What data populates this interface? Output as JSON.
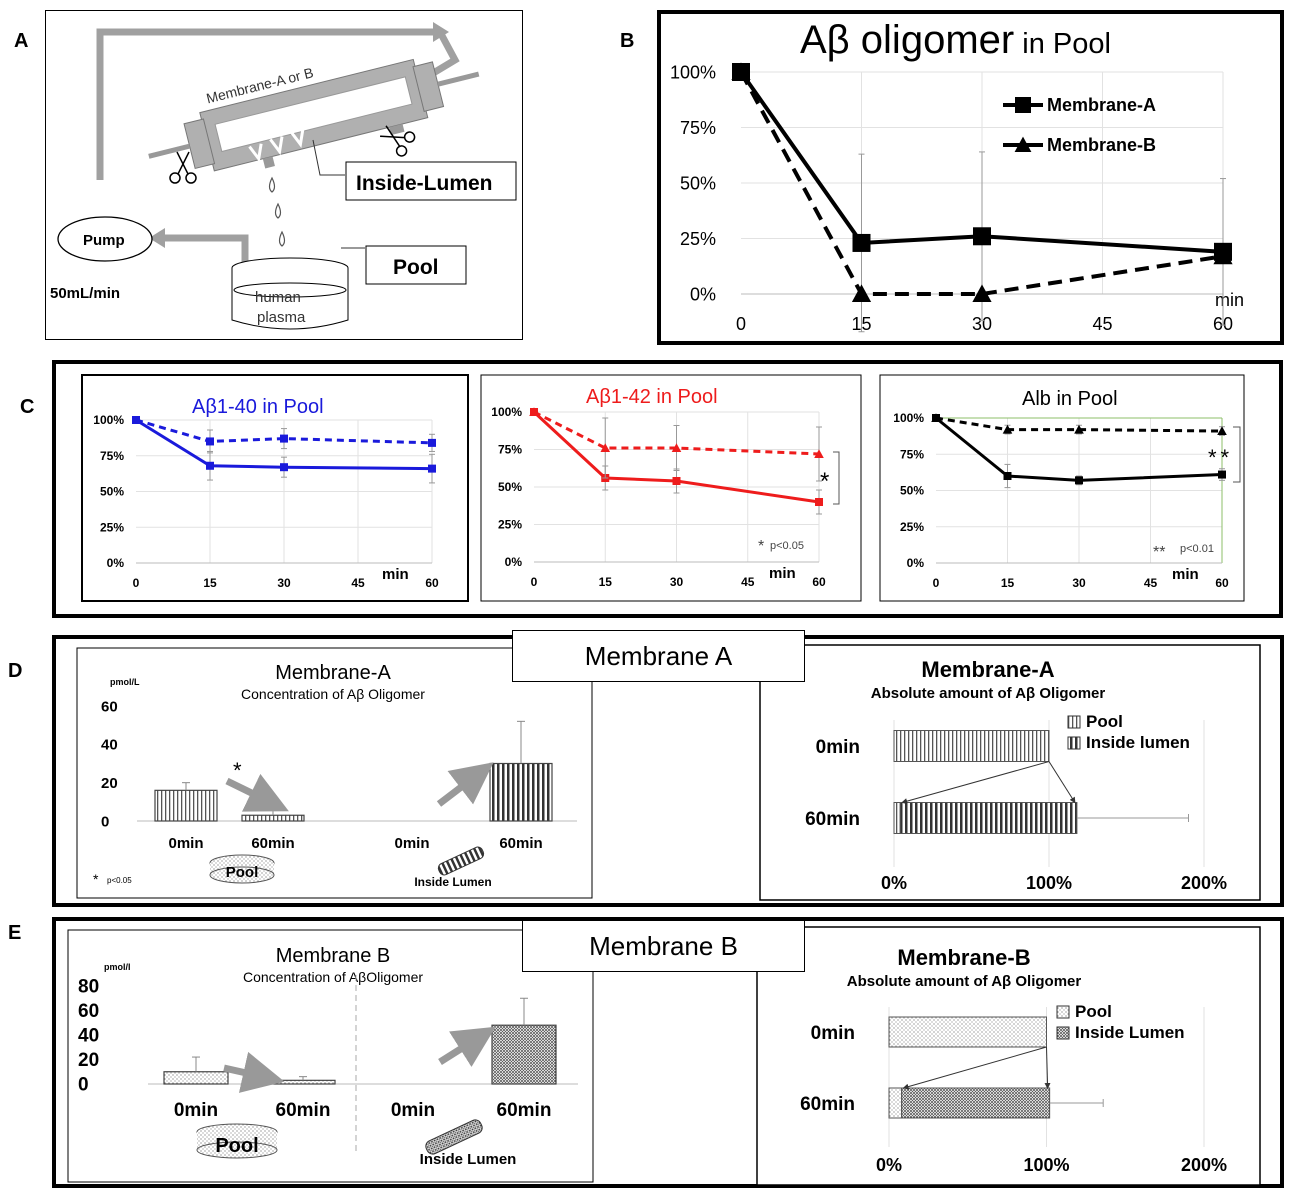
{
  "panel_labels": {
    "a": "A",
    "b": "B",
    "c": "C",
    "d": "D",
    "e": "E"
  },
  "panel_a": {
    "membrane": "Membrane-A or B",
    "inside_lumen": "Inside-Lumen",
    "pump": "Pump",
    "flow": "50mL/min",
    "pool": "Pool",
    "plasma_line1": "human",
    "plasma_line2": "plasma"
  },
  "panel_b": {
    "title_main": "Aβ oligomer",
    "title_sub": " in Pool",
    "x_unit": "min",
    "legend_a": "Membrane-A",
    "legend_b": "Membrane-B",
    "y_ticks": [
      "100%",
      "75%",
      "50%",
      "25%",
      "0%"
    ],
    "x_ticks": [
      "0",
      "15",
      "30",
      "45",
      "60"
    ]
  },
  "panel_c": {
    "titles": [
      "Aβ1-40 in Pool",
      "Aβ1-42 in Pool",
      "Alb in Pool"
    ],
    "title_colors": [
      "#1a1adb",
      "#ee1c1c",
      "#000000"
    ],
    "x_unit": "min",
    "y_ticks": [
      "100%",
      "75%",
      "50%",
      "25%",
      "0%"
    ],
    "x_ticks": [
      "0",
      "15",
      "30",
      "45",
      "60"
    ],
    "sig_42": "p<0.05",
    "sig_alb": "p<0.01"
  },
  "panel_d": {
    "box_label": "Membrane A",
    "left_title": "Membrane-A",
    "left_subtitle": "Concentration of Aβ Oligomer",
    "unit": "pmol/L",
    "y_ticks": [
      "60",
      "40",
      "20",
      "0"
    ],
    "x_labels": [
      "0min",
      "60min",
      "0min",
      "60min"
    ],
    "pool_tag": "Pool",
    "lumen_tag": "Inside Lumen",
    "sig": "p<0.05",
    "right_title": "Membrane-A",
    "right_subtitle": "Absolute amount of Aβ Oligomer",
    "legend_pool": "Pool",
    "legend_lumen": "Inside lumen",
    "rows": [
      "0min",
      "60min"
    ],
    "x_ticks": [
      "0%",
      "100%",
      "200%"
    ]
  },
  "panel_e": {
    "box_label": "Membrane B",
    "left_title": "Membrane B",
    "left_subtitle": "Concentration of AβOligomer",
    "unit": "pmol/l",
    "y_ticks": [
      "80",
      "60",
      "40",
      "20",
      "0"
    ],
    "x_labels": [
      "0min",
      "60min",
      "0min",
      "60min"
    ],
    "pool_tag": "Pool",
    "lumen_tag": "Inside Lumen",
    "right_title": "Membrane-B",
    "right_subtitle": "Absolute amount of Aβ Oligomer",
    "legend_pool": "Pool",
    "legend_lumen": "Inside Lumen",
    "rows": [
      "0min",
      "60min"
    ],
    "x_ticks": [
      "0%",
      "100%",
      "200%"
    ]
  },
  "chart_data": [
    {
      "type": "line",
      "panel": "B",
      "title": "Aβ oligomer in Pool",
      "xlabel": "min",
      "ylabel": "",
      "x": [
        0,
        15,
        30,
        60
      ],
      "xlim": [
        0,
        60
      ],
      "ylim": [
        0,
        100
      ],
      "series": [
        {
          "name": "Membrane-A",
          "values": [
            100,
            23,
            26,
            19
          ],
          "err": [
            0,
            40,
            38,
            33
          ],
          "style": "solid",
          "marker": "square"
        },
        {
          "name": "Membrane-B",
          "values": [
            100,
            0,
            0,
            17
          ],
          "err": [
            0,
            0,
            0,
            0
          ],
          "style": "dashed",
          "marker": "triangle"
        }
      ]
    },
    {
      "type": "line",
      "panel": "C-1",
      "title": "Aβ1-40 in Pool",
      "xlabel": "min",
      "x": [
        0,
        15,
        30,
        60
      ],
      "ylim": [
        0,
        100
      ],
      "series": [
        {
          "values": [
            100,
            68,
            67,
            66
          ],
          "err": [
            0,
            10,
            7,
            10
          ],
          "style": "solid"
        },
        {
          "values": [
            100,
            85,
            87,
            84
          ],
          "err": [
            0,
            8,
            7,
            6
          ],
          "style": "dashed"
        }
      ]
    },
    {
      "type": "line",
      "panel": "C-2",
      "title": "Aβ1-42 in Pool",
      "xlabel": "min",
      "x": [
        0,
        15,
        30,
        60
      ],
      "ylim": [
        0,
        100
      ],
      "series": [
        {
          "values": [
            100,
            56,
            54,
            40
          ],
          "err": [
            0,
            8,
            8,
            8
          ],
          "style": "solid"
        },
        {
          "values": [
            100,
            76,
            76,
            72
          ],
          "err": [
            0,
            20,
            15,
            18
          ],
          "style": "dashed"
        }
      ]
    },
    {
      "type": "line",
      "panel": "C-3",
      "title": "Alb in Pool",
      "xlabel": "min",
      "x": [
        0,
        15,
        30,
        60
      ],
      "ylim": [
        0,
        100
      ],
      "series": [
        {
          "values": [
            100,
            60,
            57,
            61
          ],
          "err": [
            0,
            8,
            3,
            4
          ],
          "style": "solid"
        },
        {
          "values": [
            100,
            92,
            92,
            91
          ],
          "err": [
            0,
            3,
            3,
            3
          ],
          "style": "dashed"
        }
      ]
    },
    {
      "type": "bar",
      "panel": "D-left",
      "title": "Membrane-A",
      "categories": [
        "0min",
        "60min",
        "0min",
        "60min"
      ],
      "values": [
        16,
        3,
        0,
        30
      ],
      "err": [
        4,
        6,
        0,
        22
      ],
      "ylabel": "pmol/L",
      "ylim": [
        0,
        60
      ]
    },
    {
      "type": "bar",
      "panel": "D-right",
      "title": "Membrane-A",
      "categories": [
        "0min",
        "60min"
      ],
      "series": [
        {
          "name": "Pool",
          "values": [
            100,
            4
          ]
        },
        {
          "name": "Inside lumen",
          "values": [
            0,
            114
          ]
        }
      ],
      "err": [
        0,
        72
      ],
      "xlim": [
        0,
        200
      ]
    },
    {
      "type": "bar",
      "panel": "E-left",
      "title": "Membrane B",
      "categories": [
        "0min",
        "60min",
        "0min",
        "60min"
      ],
      "values": [
        10,
        3,
        0,
        48
      ],
      "err": [
        12,
        3,
        0,
        22
      ],
      "ylabel": "pmol/l",
      "ylim": [
        0,
        80
      ]
    },
    {
      "type": "bar",
      "panel": "E-right",
      "title": "Membrane-B",
      "categories": [
        "0min",
        "60min"
      ],
      "series": [
        {
          "name": "Pool",
          "values": [
            100,
            8
          ]
        },
        {
          "name": "Inside Lumen",
          "values": [
            0,
            94
          ]
        }
      ],
      "err": [
        0,
        34
      ],
      "xlim": [
        0,
        200
      ]
    }
  ]
}
